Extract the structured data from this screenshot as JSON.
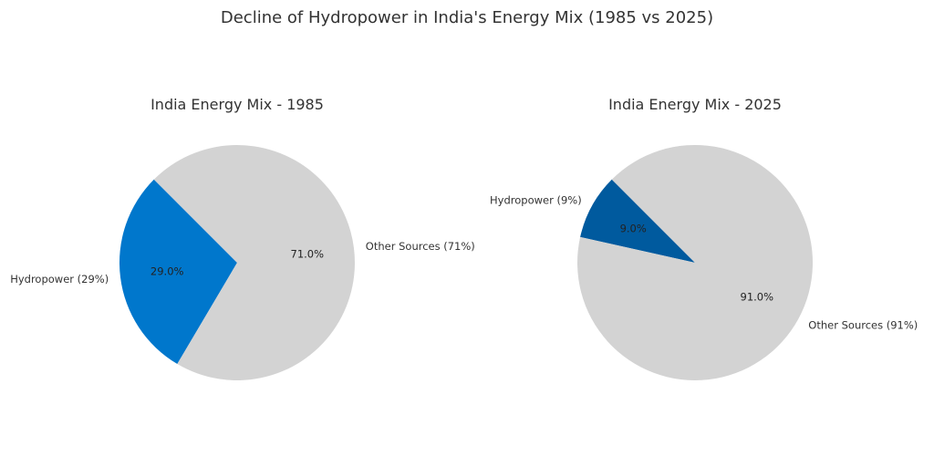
{
  "figure": {
    "title": "Decline of Hydropower in India's Energy Mix (1985 vs 2025)"
  },
  "chart_data": [
    {
      "type": "pie",
      "title": "India Energy Mix - 1985",
      "labels": [
        "Hydropower (29%)",
        "Other Sources (71%)"
      ],
      "values": [
        29,
        71
      ],
      "percent_labels": [
        "29.0%",
        "71.0%"
      ],
      "colors": [
        "#0077cc",
        "#d3d3d3"
      ],
      "start_angle_deg": 135,
      "direction": "counterclockwise"
    },
    {
      "type": "pie",
      "title": "India Energy Mix - 2025",
      "labels": [
        "Hydropower (9%)",
        "Other Sources (91%)"
      ],
      "values": [
        9,
        91
      ],
      "percent_labels": [
        "9.0%",
        "91.0%"
      ],
      "colors": [
        "#005a9e",
        "#d3d3d3"
      ],
      "start_angle_deg": 135,
      "direction": "counterclockwise"
    }
  ]
}
